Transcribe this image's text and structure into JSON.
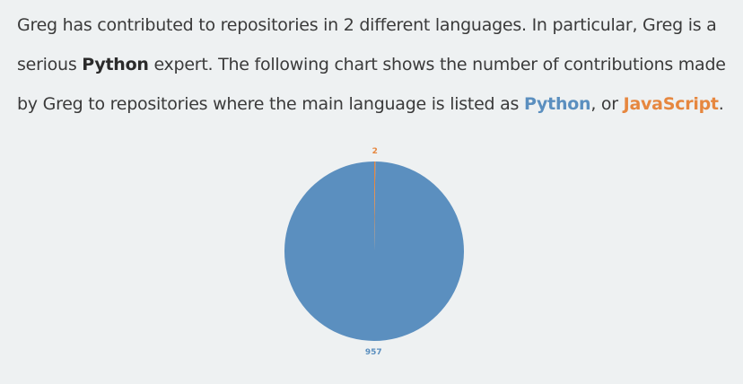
{
  "text": {
    "s1": "Greg has contributed to repositories in 2 different languages. In particular, Greg is a serious ",
    "strong": "Python",
    "s2": " expert. The following chart shows the number of contributions made by Greg to repositories where the main language is listed as ",
    "lang1": "Python",
    "s3": ", or ",
    "lang2": "JavaScript",
    "s4": "."
  },
  "colors": {
    "python": "#5b8fbf",
    "javascript": "#e6873f",
    "background": "#eef1f2",
    "text": "#3a3a3a"
  },
  "chart_data": {
    "type": "pie",
    "title": "",
    "categories": [
      "Python",
      "JavaScript"
    ],
    "values": [
      957,
      2
    ],
    "labels": [
      "957",
      "2"
    ],
    "colors": [
      "#5b8fbf",
      "#e6873f"
    ],
    "legend": "none"
  }
}
